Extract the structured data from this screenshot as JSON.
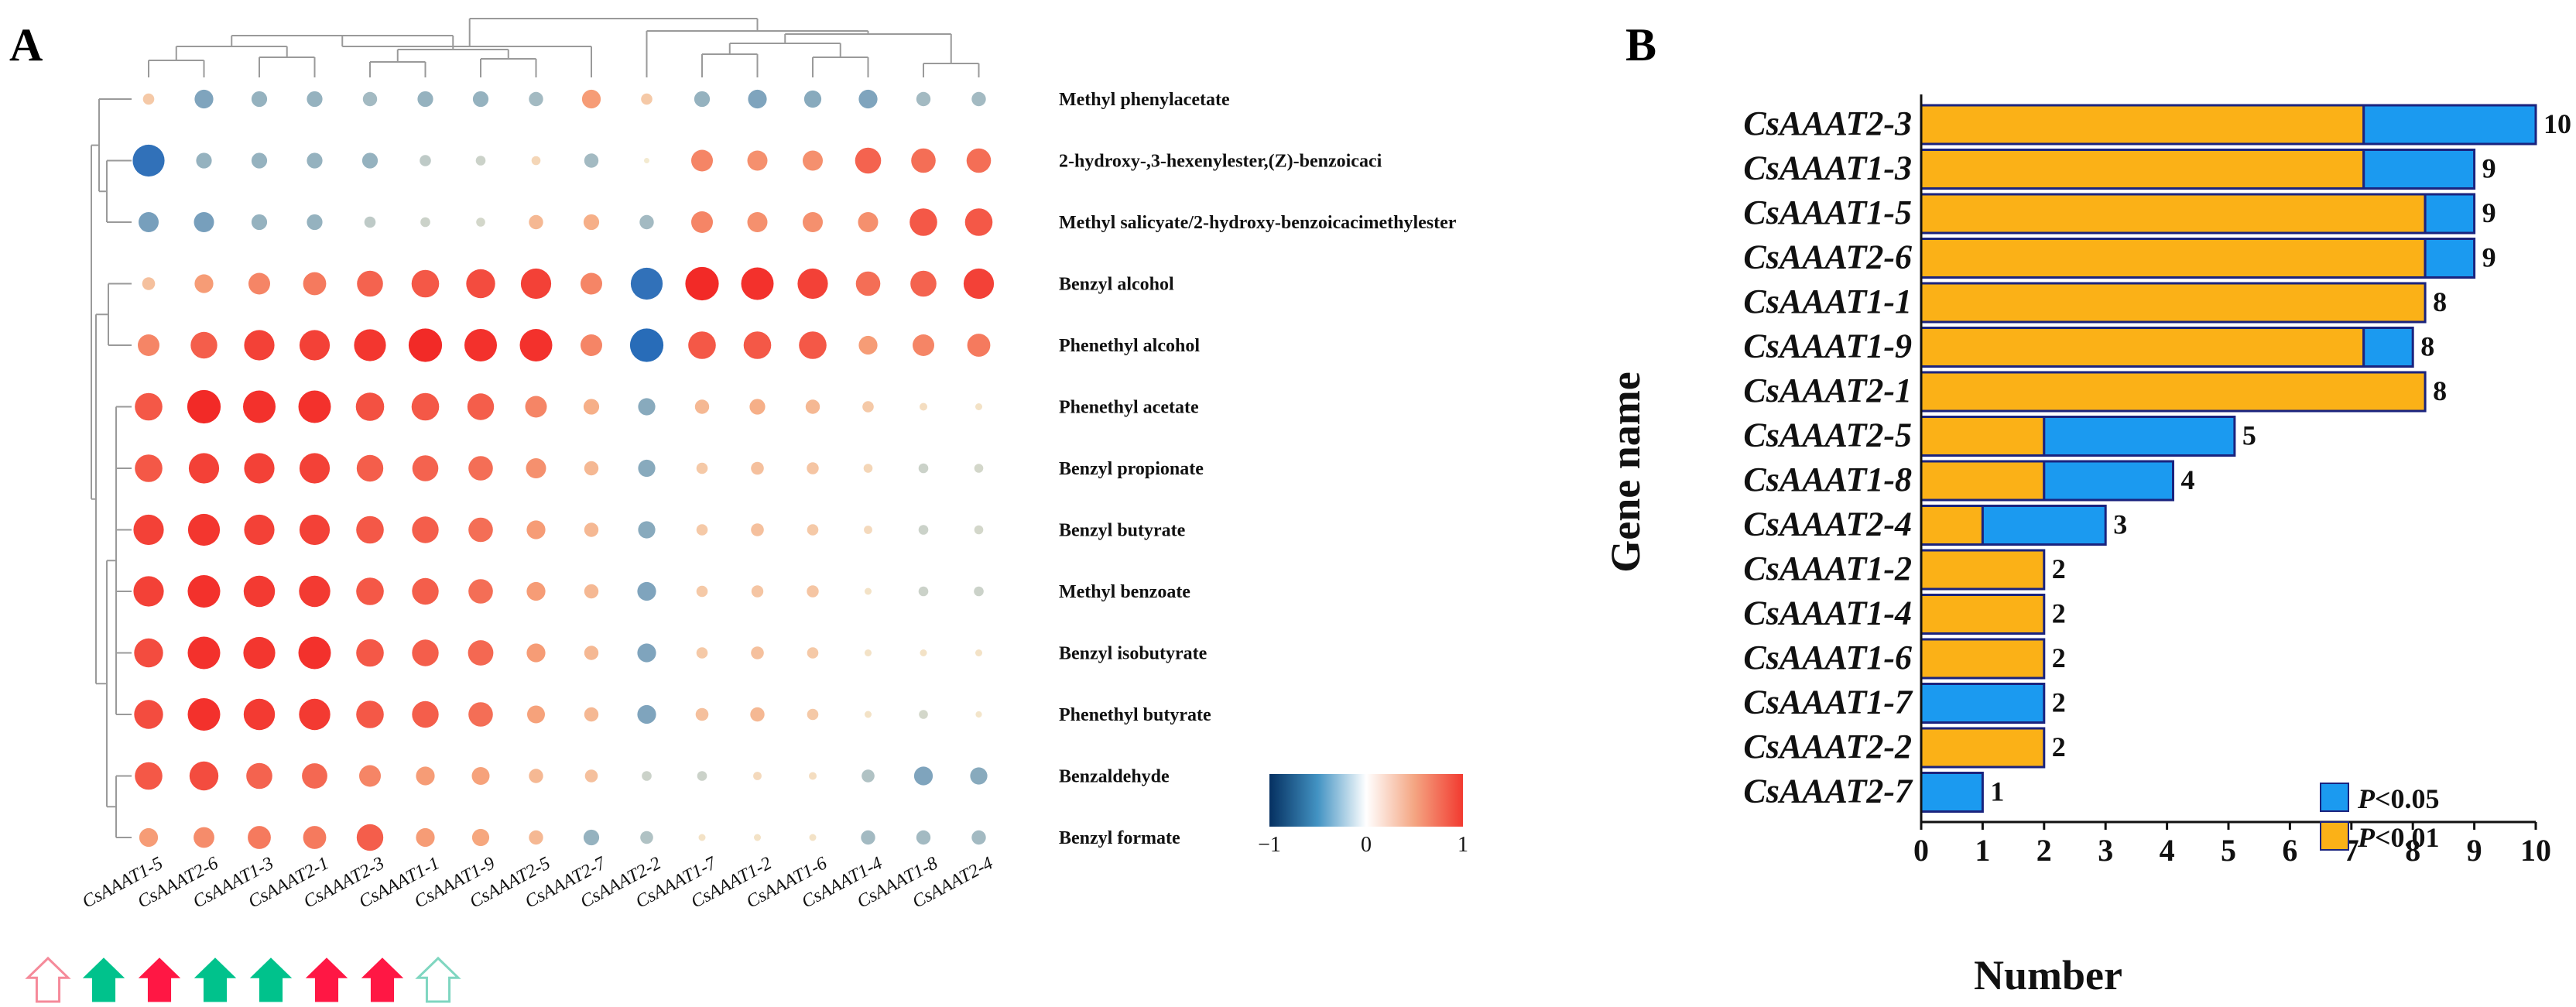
{
  "panel_a_label": "A",
  "panel_b_label": "B",
  "heatmap_colorbar_ticks": [
    "−1",
    "0",
    "1"
  ],
  "bar_legend": {
    "p05_italic": "P",
    "p05_rest": "<0.05",
    "p01_italic": "P",
    "p01_rest": "<0.01",
    "p05_color": "#1b9af0",
    "p01_color": "#fbb117"
  },
  "arrow_markers": [
    {
      "style": "outline",
      "color": "#f58a9a"
    },
    {
      "style": "filled",
      "color": "#00c28c"
    },
    {
      "style": "filled",
      "color": "#ff1744"
    },
    {
      "style": "filled",
      "color": "#00c28c"
    },
    {
      "style": "filled",
      "color": "#00c28c"
    },
    {
      "style": "filled",
      "color": "#ff1744"
    },
    {
      "style": "filled",
      "color": "#ff1744"
    },
    {
      "style": "outline",
      "color": "#7fd6c0"
    }
  ],
  "chart_data": [
    {
      "type": "heatmap",
      "title": "",
      "columns": [
        "CsAAAT1-5",
        "CsAAAT2-6",
        "CsAAAT1-3",
        "CsAAAT2-1",
        "CsAAAT2-3",
        "CsAAAT1-1",
        "CsAAAT1-9",
        "CsAAAT2-5",
        "CsAAAT2-7",
        "CsAAAT2-2",
        "CsAAAT1-7",
        "CsAAAT1-2",
        "CsAAAT1-6",
        "CsAAAT1-4",
        "CsAAAT1-8",
        "CsAAAT2-4"
      ],
      "rows": [
        "Methyl phenylacetate",
        "2-hydroxy-,3-hexenylester,(Z)-benzoicaci",
        "Methyl salicyate/2-hydroxy-benzoicacimethylester",
        "Benzyl alcohol",
        "Phenethyl alcohol",
        "Phenethyl acetate",
        "Benzyl propionate",
        "Benzyl butyrate",
        "Methyl benzoate",
        "Benzyl isobutyrate",
        "Phenethyl butyrate",
        "Benzaldehyde",
        "Benzyl formate"
      ],
      "value_range": [
        -1,
        1
      ],
      "values": [
        [
          0.2,
          -0.45,
          -0.35,
          -0.35,
          -0.3,
          -0.35,
          -0.35,
          -0.3,
          0.45,
          0.2,
          -0.35,
          -0.45,
          -0.4,
          -0.45,
          -0.3,
          -0.3
        ],
        [
          -0.9,
          -0.35,
          -0.35,
          -0.35,
          -0.35,
          -0.2,
          -0.15,
          0.12,
          -0.3,
          0.0,
          0.55,
          0.5,
          0.5,
          0.7,
          0.65,
          0.65
        ],
        [
          -0.5,
          -0.5,
          -0.35,
          -0.35,
          -0.2,
          -0.15,
          -0.12,
          0.3,
          0.35,
          -0.3,
          0.55,
          0.5,
          0.5,
          0.5,
          0.75,
          0.75
        ],
        [
          0.25,
          0.45,
          0.55,
          0.6,
          0.7,
          0.75,
          0.8,
          0.85,
          0.55,
          -0.9,
          0.95,
          0.92,
          0.85,
          0.65,
          0.7,
          0.85
        ],
        [
          0.55,
          0.72,
          0.85,
          0.85,
          0.9,
          0.95,
          0.92,
          0.92,
          0.55,
          -0.95,
          0.75,
          0.75,
          0.75,
          0.45,
          0.55,
          0.6
        ],
        [
          0.75,
          0.95,
          0.92,
          0.92,
          0.78,
          0.75,
          0.72,
          0.55,
          0.35,
          -0.4,
          0.3,
          0.35,
          0.3,
          0.2,
          0.08,
          0.05
        ],
        [
          0.75,
          0.85,
          0.85,
          0.85,
          0.72,
          0.7,
          0.65,
          0.5,
          0.3,
          -0.4,
          0.2,
          0.25,
          0.22,
          0.12,
          -0.15,
          -0.12
        ],
        [
          0.85,
          0.9,
          0.85,
          0.85,
          0.75,
          0.72,
          0.65,
          0.45,
          0.3,
          -0.4,
          0.2,
          0.25,
          0.2,
          0.1,
          -0.15,
          -0.12
        ],
        [
          0.85,
          0.92,
          0.88,
          0.88,
          0.75,
          0.72,
          0.65,
          0.45,
          0.3,
          -0.45,
          0.2,
          0.22,
          0.22,
          0.05,
          -0.15,
          -0.15
        ],
        [
          0.8,
          0.92,
          0.9,
          0.92,
          0.75,
          0.72,
          0.68,
          0.45,
          0.3,
          -0.45,
          0.2,
          0.25,
          0.2,
          0.05,
          0.05,
          0.05
        ],
        [
          0.8,
          0.92,
          0.88,
          0.88,
          0.75,
          0.72,
          0.65,
          0.42,
          0.3,
          -0.45,
          0.25,
          0.3,
          0.2,
          0.05,
          -0.12,
          0.03
        ],
        [
          0.75,
          0.8,
          0.7,
          0.68,
          0.55,
          0.45,
          0.42,
          0.3,
          0.25,
          -0.15,
          -0.15,
          0.1,
          0.08,
          -0.25,
          -0.45,
          -0.4
        ],
        [
          0.45,
          0.52,
          0.6,
          0.6,
          0.72,
          0.45,
          0.4,
          0.3,
          -0.35,
          -0.25,
          0.05,
          0.05,
          0.05,
          -0.3,
          -0.3,
          -0.3
        ]
      ]
    },
    {
      "type": "bar",
      "orientation": "horizontal",
      "stacked": true,
      "title": "",
      "xlabel": "Number",
      "ylabel": "Gene name",
      "xlim": [
        0,
        10
      ],
      "xticks": [
        "0",
        "1",
        "2",
        "3",
        "4",
        "5",
        "6",
        "7",
        "8",
        "9",
        "10"
      ],
      "categories": [
        "CsAAAT2-3",
        "CsAAAT1-3",
        "CsAAAT1-5",
        "CsAAAT2-6",
        "CsAAAT1-1",
        "CsAAAT1-9",
        "CsAAAT2-1",
        "CsAAAT2-5",
        "CsAAAT1-8",
        "CsAAAT2-4",
        "CsAAAT1-2",
        "CsAAAT1-4",
        "CsAAAT1-6",
        "CsAAAT1-7",
        "CsAAAT2-2",
        "CsAAAT2-7"
      ],
      "totals": [
        "10",
        "9",
        "9",
        "9",
        "8",
        "8",
        "8",
        "5",
        "4",
        "3",
        "2",
        "2",
        "2",
        "2",
        "2",
        "1"
      ],
      "series": [
        {
          "name": "P<0.01",
          "color": "#fbb117",
          "values": [
            7.2,
            7.2,
            8.2,
            8.2,
            8.2,
            7.2,
            8.2,
            2,
            2,
            1,
            2,
            2,
            2,
            0,
            2,
            0
          ]
        },
        {
          "name": "P<0.05",
          "color": "#1b9af0",
          "values": [
            2.8,
            1.8,
            0.8,
            0.8,
            0,
            0.8,
            0,
            3.1,
            2.1,
            2,
            0,
            0,
            0,
            2,
            0,
            1
          ]
        }
      ],
      "legend": "bottom-right"
    }
  ]
}
